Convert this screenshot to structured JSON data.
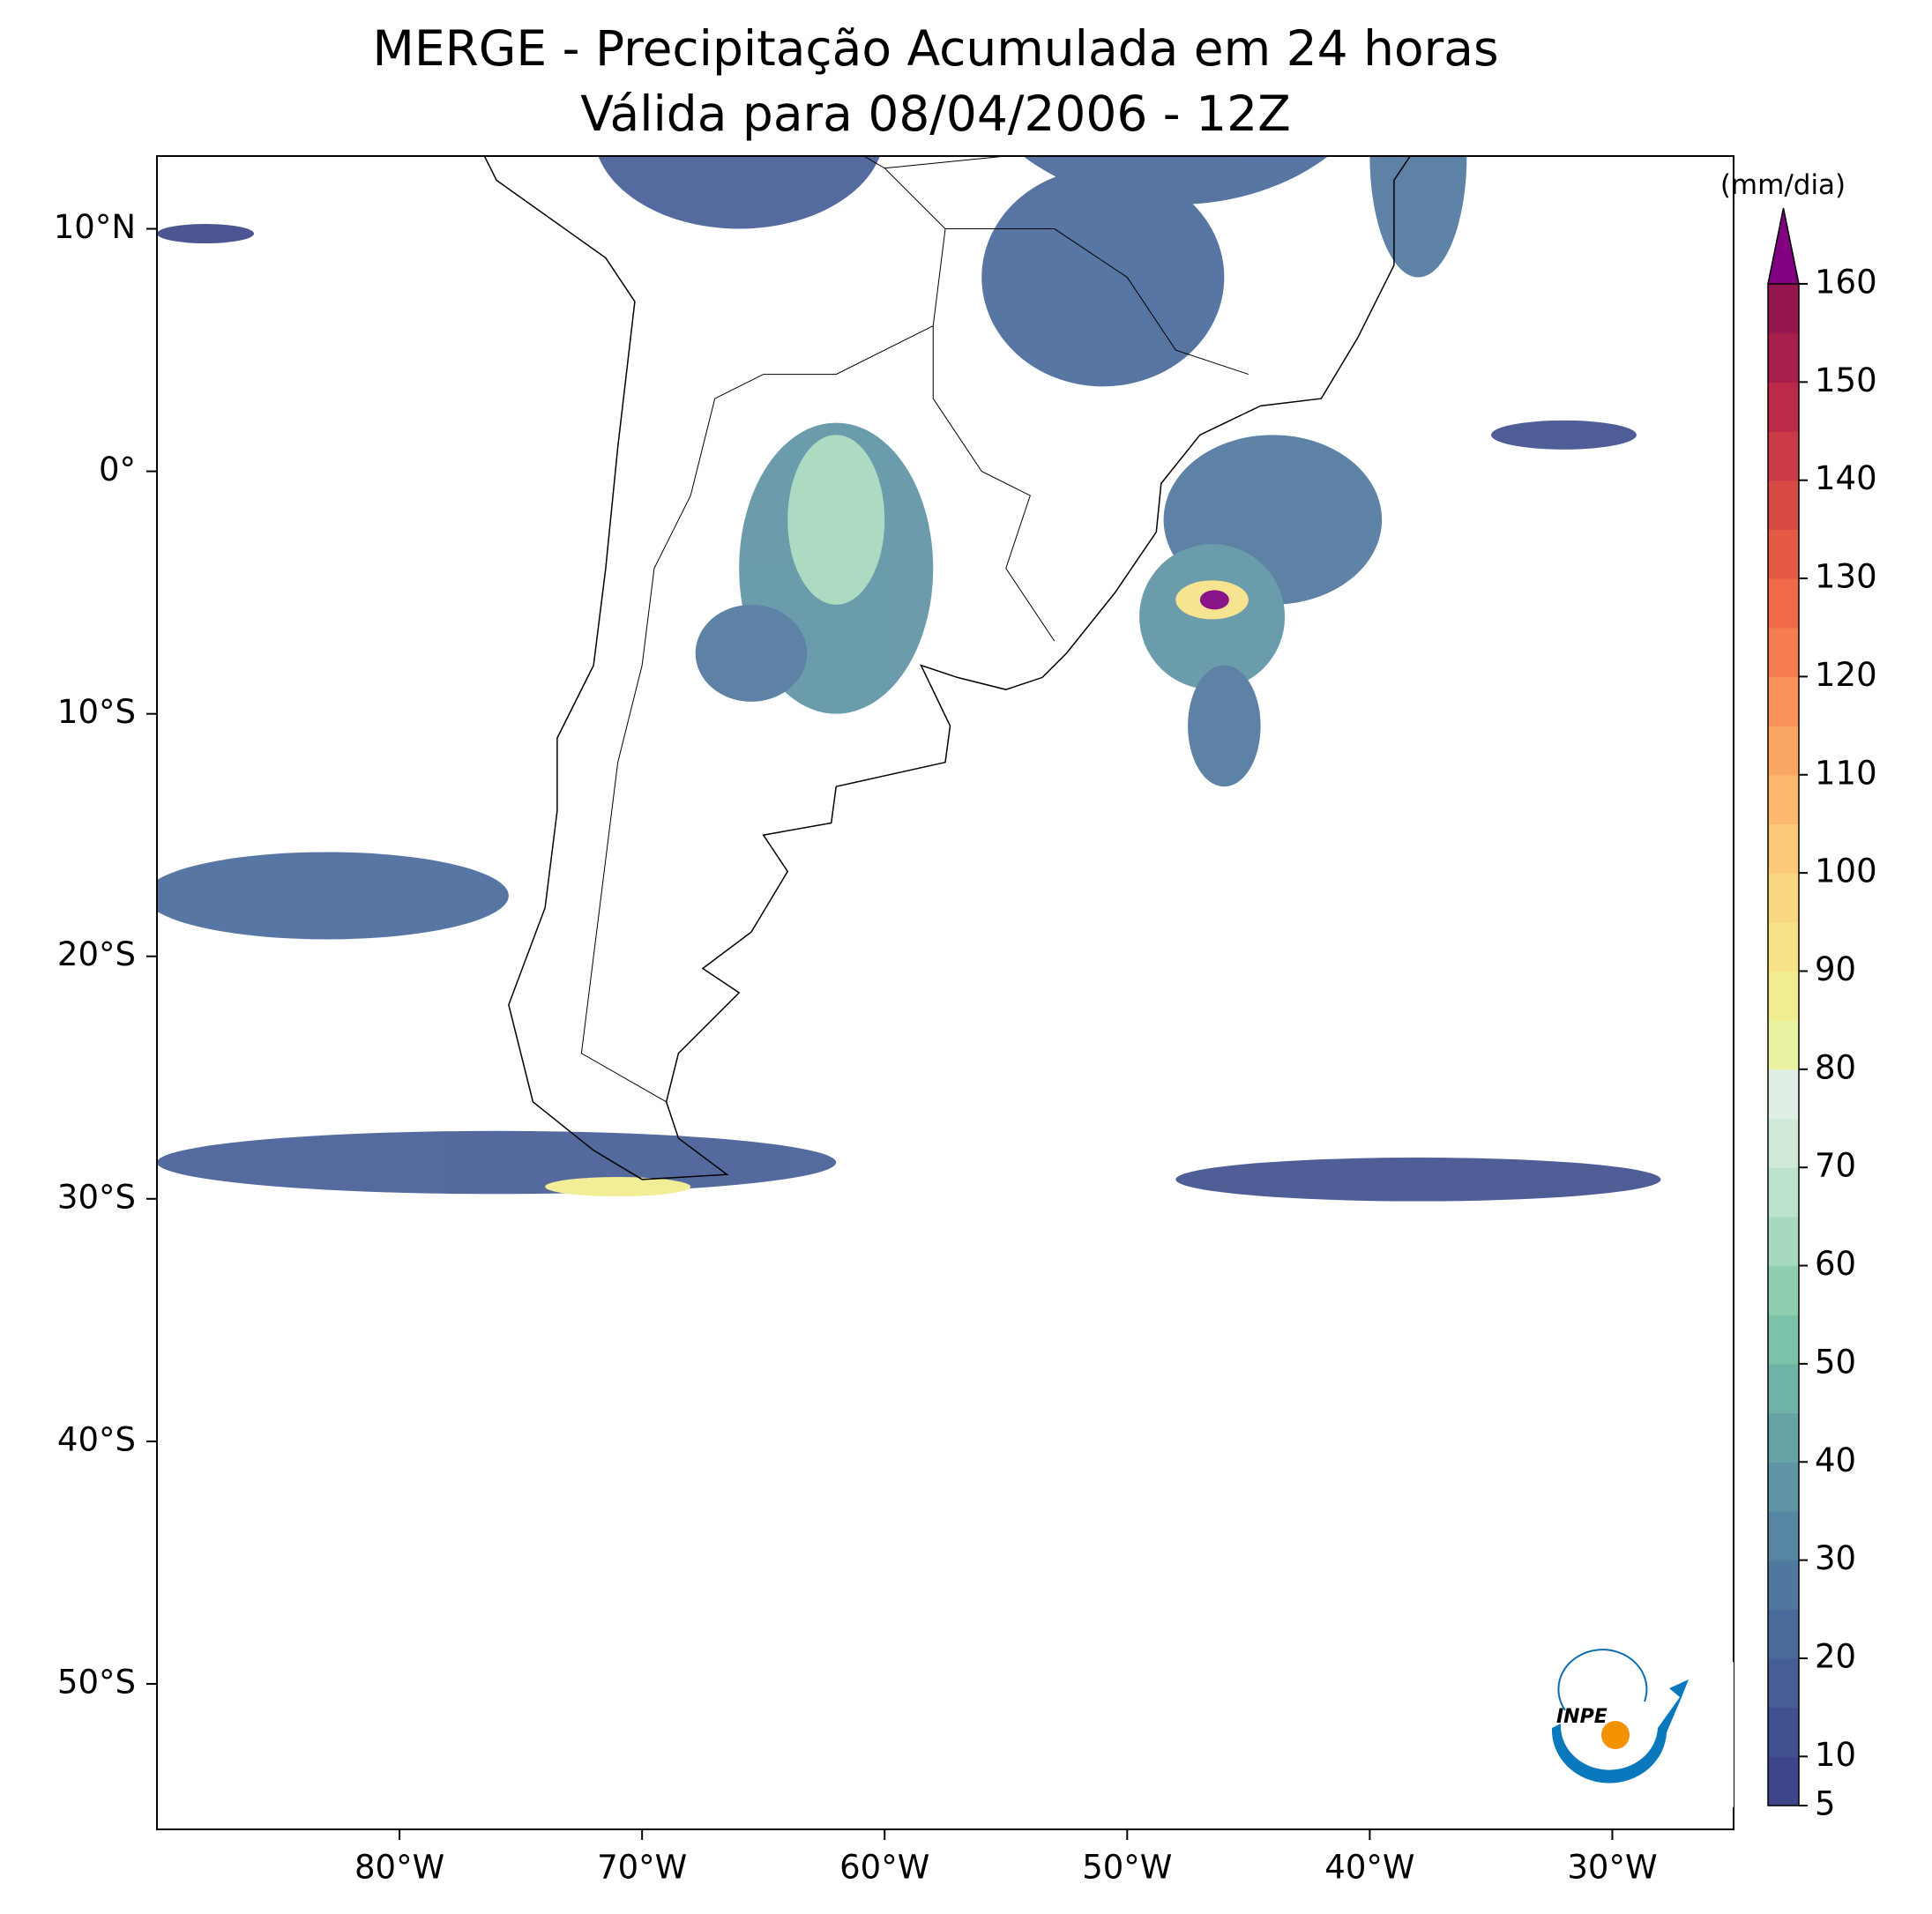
{
  "chart_data": {
    "type": "map",
    "title": "MERGE - Precipitação Acumulada em 24 horas",
    "subtitle": "Válida para 08/04/2006 - 12Z",
    "xlim": [
      -90,
      -25
    ],
    "ylim": [
      -56,
      13
    ],
    "xticks": [
      {
        "value": -80,
        "label": "80°W"
      },
      {
        "value": -70,
        "label": "70°W"
      },
      {
        "value": -60,
        "label": "60°W"
      },
      {
        "value": -50,
        "label": "50°W"
      },
      {
        "value": -40,
        "label": "40°W"
      },
      {
        "value": -30,
        "label": "30°W"
      }
    ],
    "yticks": [
      {
        "value": 10,
        "label": "10°N"
      },
      {
        "value": 0,
        "label": "0°"
      },
      {
        "value": -10,
        "label": "10°S"
      },
      {
        "value": -20,
        "label": "20°S"
      },
      {
        "value": -30,
        "label": "30°S"
      },
      {
        "value": -40,
        "label": "40°S"
      },
      {
        "value": -50,
        "label": "50°S"
      }
    ],
    "colorbar": {
      "label": "(mm/dia)",
      "lim": [
        5,
        160
      ],
      "ticks": [
        5,
        10,
        20,
        30,
        40,
        50,
        60,
        70,
        80,
        90,
        100,
        110,
        120,
        130,
        140,
        150,
        160
      ],
      "colors": [
        "#3e4589",
        "#41508f",
        "#465d96",
        "#4a6a9b",
        "#50789f",
        "#5786a2",
        "#5f94a4",
        "#66a3a5",
        "#6fb2a6",
        "#7cc2a8",
        "#8fcfb0",
        "#a6d9bd",
        "#bce2cb",
        "#cfe9d9",
        "#dfefe6",
        "#e8f2a0",
        "#f1ec8f",
        "#f7e287",
        "#fad880",
        "#fcc978",
        "#fdb86e",
        "#fca664",
        "#fa925a",
        "#f67d50",
        "#f06a47",
        "#e65a45",
        "#da4a45",
        "#cc3a47",
        "#bb2b49",
        "#a81f4c",
        "#951750"
      ],
      "extend_color": "#800080"
    },
    "logo_text": "INPE"
  }
}
